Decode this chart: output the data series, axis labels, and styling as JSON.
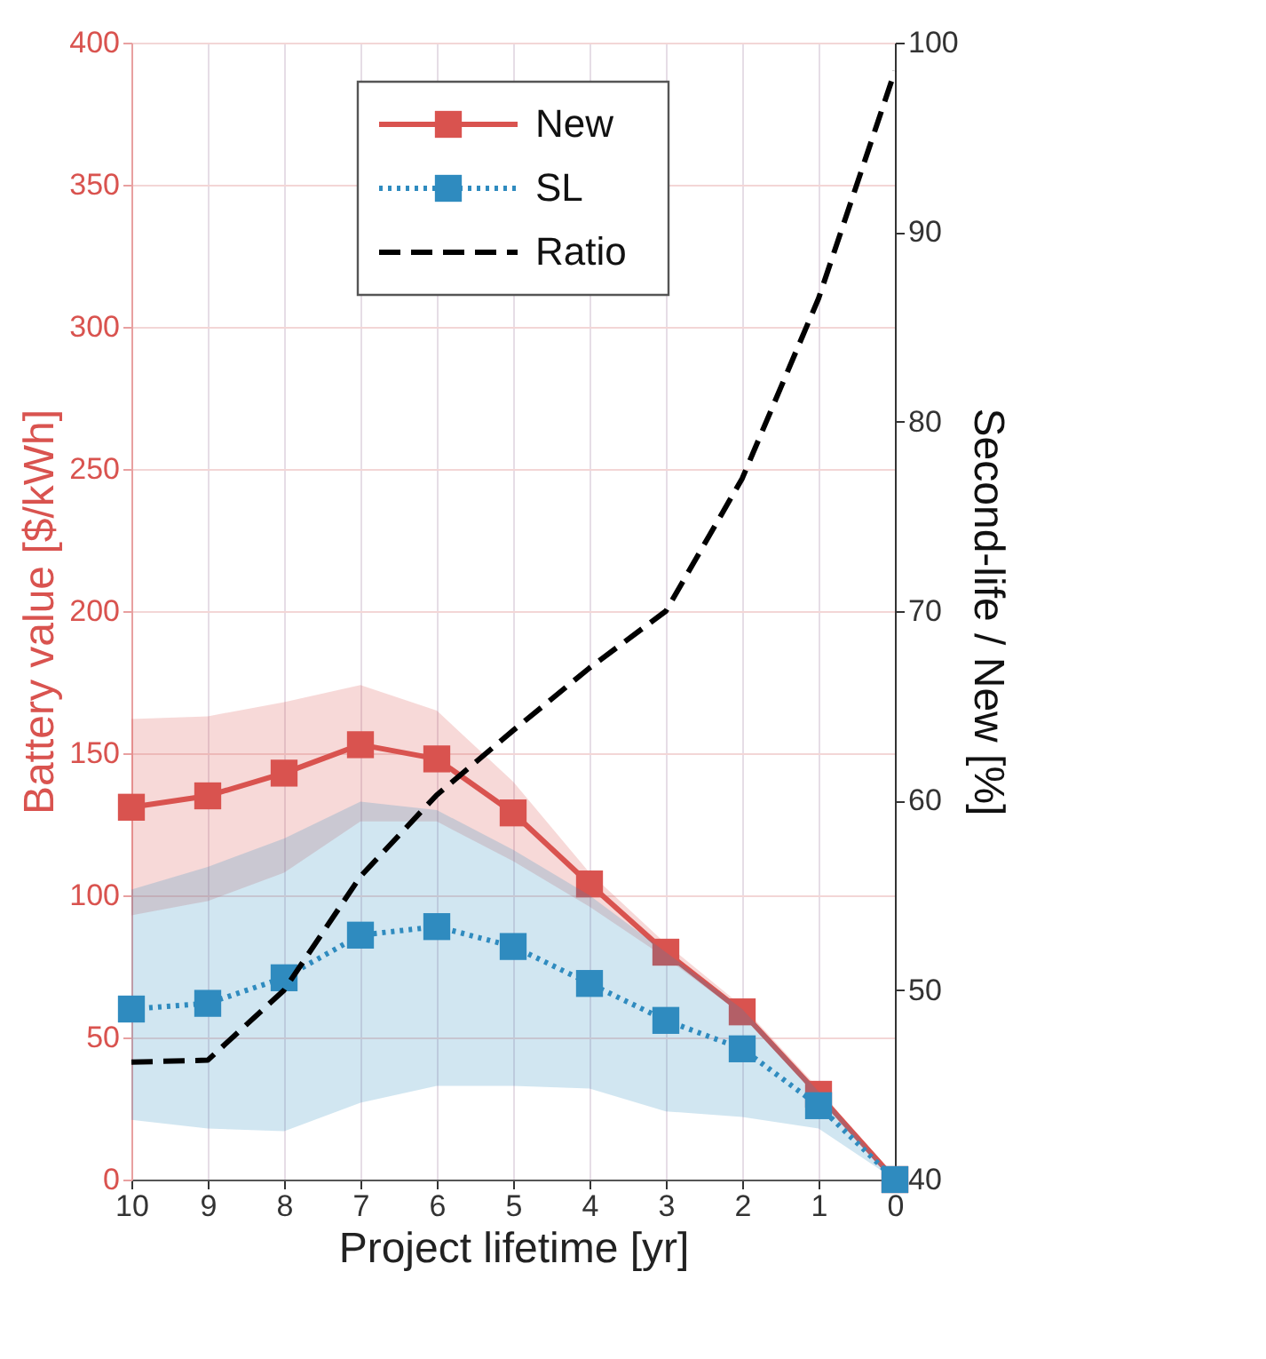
{
  "chart_data": {
    "type": "line",
    "xlabel": "Project lifetime [yr]",
    "ylabel": "Battery value [$/kWh]",
    "y2label": "Second-life / New [%]",
    "x": [
      10,
      9,
      8,
      7,
      6,
      5,
      4,
      3,
      2,
      1,
      0
    ],
    "xlim": [
      10,
      0
    ],
    "xticks": [
      10,
      9,
      8,
      7,
      6,
      5,
      4,
      3,
      2,
      1,
      0
    ],
    "ylim": [
      0,
      400
    ],
    "yticks": [
      0,
      50,
      100,
      150,
      200,
      250,
      300,
      350,
      400
    ],
    "y2lim": [
      40,
      100
    ],
    "y2ticks": [
      40,
      50,
      60,
      70,
      80,
      90,
      100
    ],
    "grid": true,
    "legend": "top",
    "series": [
      {
        "name": "New",
        "color": "#d9534f",
        "marker": "square",
        "line_style": "solid",
        "values": [
          131,
          135,
          143,
          153,
          148,
          129,
          104,
          80,
          59,
          30,
          0
        ],
        "lower": [
          93,
          98,
          108,
          126,
          126,
          112,
          96,
          78,
          58,
          29,
          0
        ],
        "upper": [
          162,
          163,
          168,
          174,
          165,
          140,
          108,
          83,
          61,
          32,
          0
        ]
      },
      {
        "name": "SL",
        "color": "#2f8bbf",
        "marker": "square",
        "line_style": "dotted",
        "values": [
          60,
          62,
          71,
          86,
          89,
          82,
          69,
          56,
          46,
          26,
          0
        ],
        "lower": [
          21,
          18,
          17,
          27,
          33,
          33,
          32,
          24,
          22,
          18,
          0
        ],
        "upper": [
          102,
          110,
          120,
          133,
          130,
          116,
          100,
          80,
          60,
          31,
          0
        ]
      },
      {
        "name": "Ratio",
        "color": "#000000",
        "marker": "none",
        "line_style": "dashed",
        "axis": "y2",
        "values": [
          46.2,
          46.3,
          50,
          56,
          60.3,
          63.7,
          67,
          70,
          77,
          86.5,
          98.5
        ]
      }
    ]
  }
}
